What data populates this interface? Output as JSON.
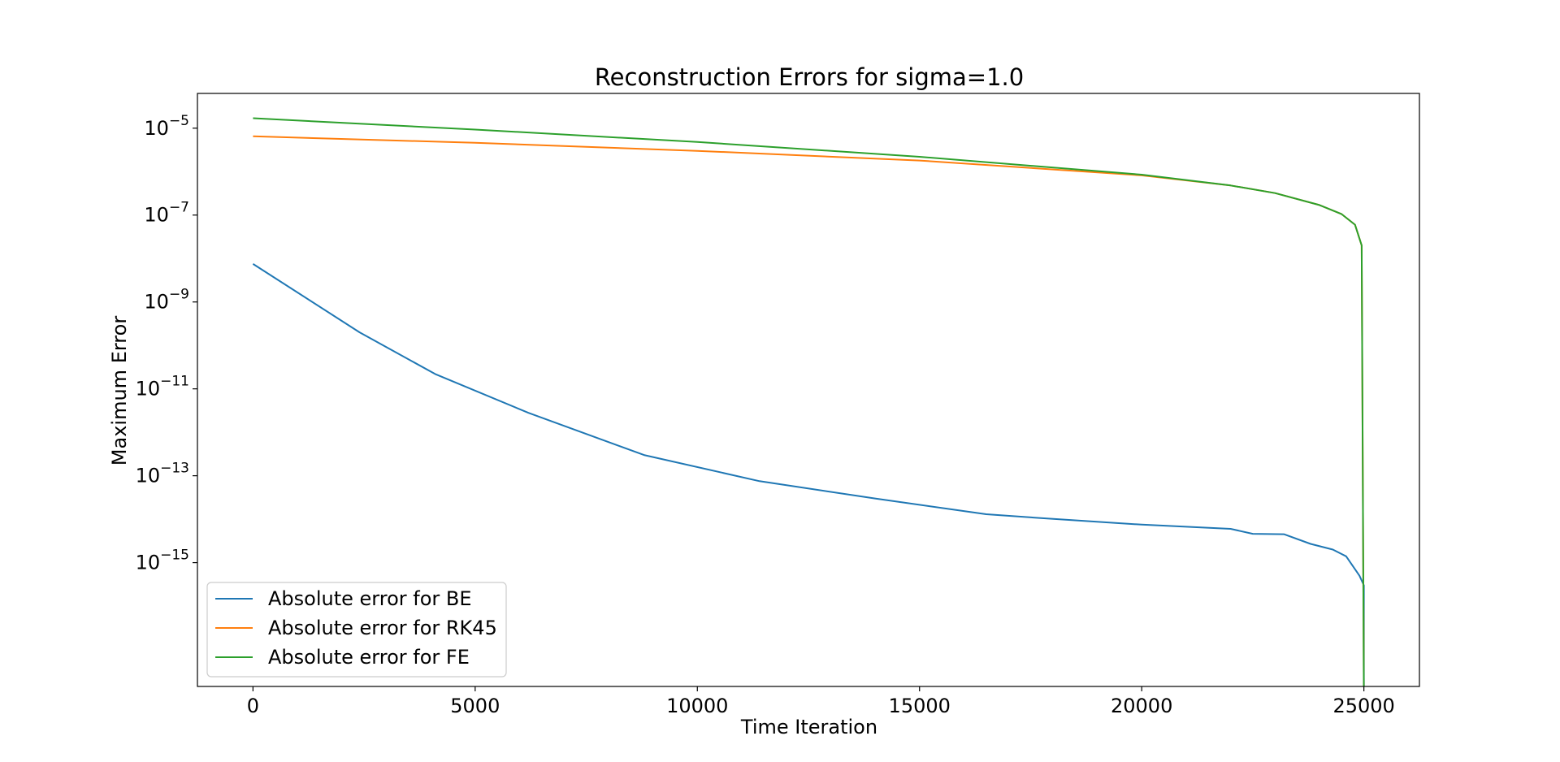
{
  "chart_data": {
    "type": "line",
    "title": "Reconstruction Errors for sigma=1.0",
    "xlabel": "Time Iteration",
    "ylabel": "Maximum Error",
    "xlim": [
      -1250,
      26250
    ],
    "ylim_log10": [
      -17.85,
      -4.2
    ],
    "yscale": "log",
    "grid": false,
    "legend_position": "lower-left",
    "x_ticks": [
      0,
      5000,
      10000,
      15000,
      20000,
      25000
    ],
    "x_tick_labels": [
      "0",
      "5000",
      "10000",
      "15000",
      "20000",
      "25000"
    ],
    "y_ticks_exponent": [
      -5,
      -7,
      -9,
      -11,
      -13,
      -15
    ],
    "y_tick_base": "10",
    "y_tick_exponent_labels": [
      "−5",
      "−7",
      "−9",
      "−11",
      "−13",
      "−15"
    ],
    "series": [
      {
        "name": "Absolute error for BE",
        "color": "#1f77b4",
        "x": [
          0,
          2400,
          4100,
          6200,
          8800,
          11400,
          14000,
          16500,
          17800,
          20000,
          22000,
          22500,
          23200,
          23800,
          24300,
          24600,
          24900,
          25000,
          25000
        ],
        "y": [
          7.5e-09,
          2e-10,
          2.2e-11,
          2.8e-12,
          3e-13,
          7.5e-14,
          3e-14,
          1.3e-14,
          1.05e-14,
          7.5e-15,
          6e-15,
          4.6e-15,
          4.5e-15,
          2.7e-15,
          2e-15,
          1.4e-15,
          5e-16,
          3e-16,
          1e-18
        ]
      },
      {
        "name": "Absolute error for RK45",
        "color": "#ff7f0e",
        "x": [
          0,
          5000,
          10000,
          15000,
          20000,
          22000,
          23000,
          24000,
          24500,
          24800,
          24950,
          25000
        ],
        "y": [
          6.5e-06,
          4.6e-06,
          3e-06,
          1.8e-06,
          8.2e-07,
          4.8e-07,
          3.2e-07,
          1.7e-07,
          1.05e-07,
          6e-08,
          2e-08,
          1e-18
        ]
      },
      {
        "name": "Absolute error for FE",
        "color": "#2ca02c",
        "x": [
          0,
          5000,
          10000,
          15000,
          20000,
          22000,
          23000,
          24000,
          24500,
          24800,
          24950,
          25000
        ],
        "y": [
          1.7e-05,
          9.3e-06,
          4.8e-06,
          2.2e-06,
          8.5e-07,
          4.8e-07,
          3.2e-07,
          1.7e-07,
          1.05e-07,
          6e-08,
          2e-08,
          1e-18
        ]
      }
    ]
  }
}
